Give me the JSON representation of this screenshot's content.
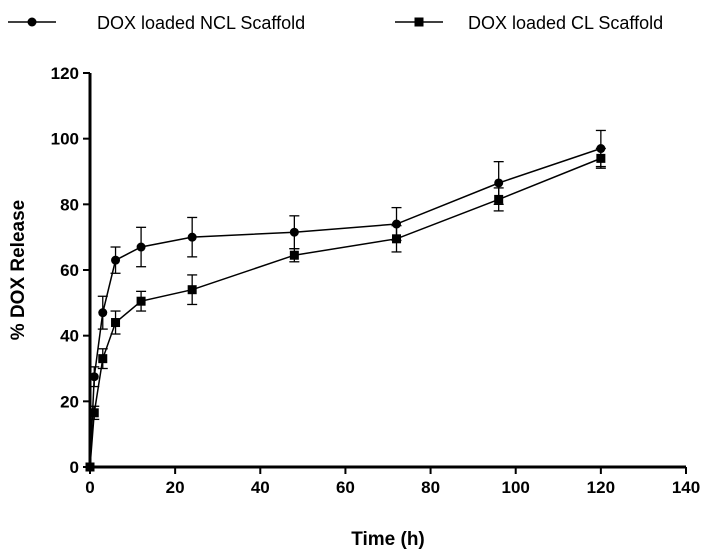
{
  "chart_data": {
    "type": "line",
    "title": "",
    "xlabel": "Time (h)",
    "ylabel": "% DOX Release",
    "xlim": [
      0,
      140
    ],
    "ylim": [
      0,
      120
    ],
    "xticks": [
      0,
      20,
      40,
      60,
      80,
      100,
      120,
      140
    ],
    "yticks": [
      0,
      20,
      40,
      60,
      80,
      100,
      120
    ],
    "grid": false,
    "legend_position": "top",
    "series": [
      {
        "name": "DOX loaded NCL Scaffold",
        "marker": "circle",
        "x": [
          0,
          1,
          3,
          6,
          12,
          24,
          48,
          72,
          96,
          120
        ],
        "y": [
          0,
          27.5,
          47,
          63,
          67,
          70,
          71.5,
          74,
          86.5,
          97
        ],
        "err": [
          0,
          3,
          5,
          4,
          6,
          6,
          5,
          5,
          6.5,
          5.5
        ]
      },
      {
        "name": "DOX loaded CL Scaffold",
        "marker": "square",
        "x": [
          0,
          1,
          3,
          6,
          12,
          24,
          48,
          72,
          96,
          120
        ],
        "y": [
          0,
          16.5,
          33,
          44,
          50.5,
          54,
          64.5,
          69.5,
          81.5,
          94
        ],
        "err": [
          0,
          2,
          3,
          3.5,
          3,
          4.5,
          2,
          4,
          3.5,
          3
        ]
      }
    ]
  }
}
